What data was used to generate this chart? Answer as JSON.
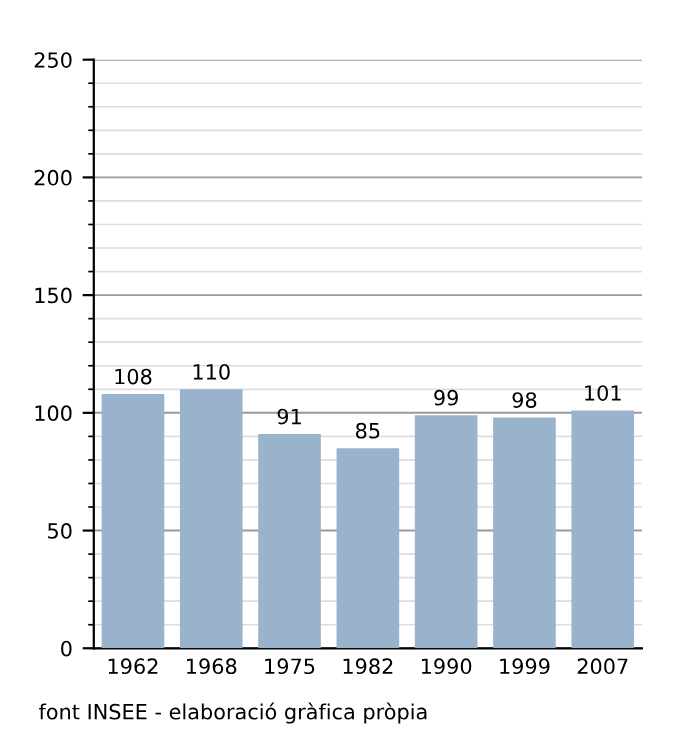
{
  "chart_data": {
    "type": "bar",
    "categories": [
      "1962",
      "1968",
      "1975",
      "1982",
      "1990",
      "1999",
      "2007"
    ],
    "values": [
      108,
      110,
      91,
      85,
      99,
      98,
      101
    ],
    "color": "#9ab3cc",
    "data_labels": true,
    "ylim": [
      0,
      250
    ],
    "yticks": [
      0,
      50,
      100,
      150,
      200,
      250
    ],
    "grid": "y",
    "annotations": [
      "font INSEE - elaboració gràfica pròpia"
    ]
  }
}
